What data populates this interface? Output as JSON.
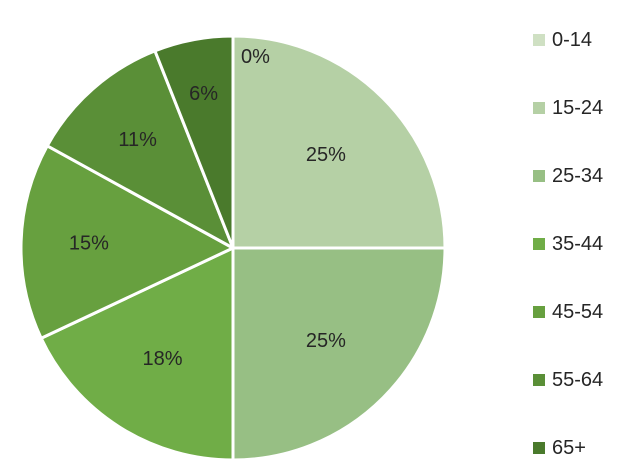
{
  "chart_data": {
    "type": "pie",
    "categories": [
      "0-14",
      "15-24",
      "25-34",
      "35-44",
      "45-54",
      "55-64",
      "65+"
    ],
    "values": [
      0,
      25,
      25,
      18,
      15,
      11,
      6
    ],
    "value_labels": [
      "0%",
      "25%",
      "25%",
      "18%",
      "15%",
      "11%",
      "6%"
    ],
    "colors": [
      "#cfe0c3",
      "#b5d0a5",
      "#97bf84",
      "#70ad47",
      "#67a03f",
      "#5a8f37",
      "#4a7a2c"
    ],
    "legend": "right",
    "title": ""
  }
}
